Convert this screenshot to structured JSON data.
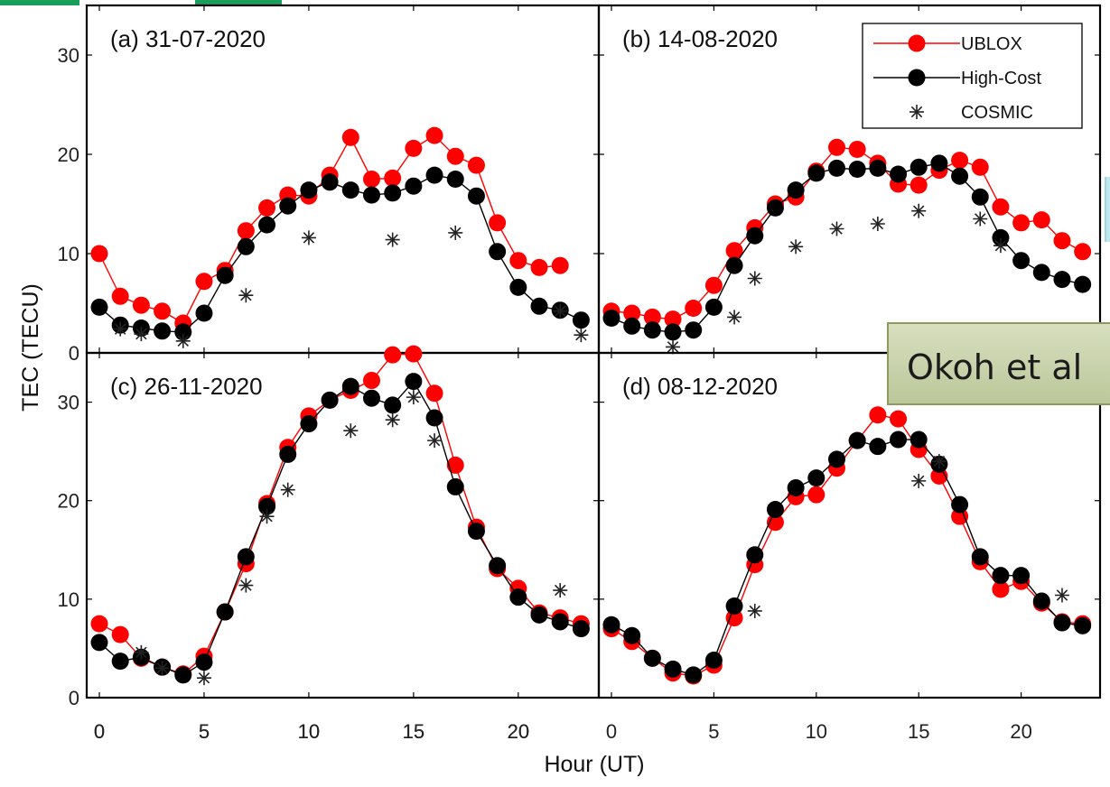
{
  "figure": {
    "xlabel": "Hour (UT)",
    "ylabel": "TEC (TECU)",
    "note_text": "Okoh et al"
  },
  "colors": {
    "ublox": "#ff0000",
    "highcost": "#000000",
    "cosmic": "#222222",
    "note_bg": "#c9d2a6"
  },
  "legend": {
    "entries": [
      "UBLOX",
      "High-Cost",
      "COSMIC"
    ],
    "position": "top-right of panel b"
  },
  "chart_data": [
    {
      "type": "line",
      "title": "(a) 31-07-2020",
      "xlim": [
        0,
        23.5
      ],
      "ylim": [
        0,
        35
      ],
      "xticks": [
        "0",
        "5",
        "10",
        "15",
        "20"
      ],
      "yticks": [
        "0",
        "10",
        "20",
        "30"
      ],
      "grid": false,
      "series": [
        {
          "name": "UBLOX",
          "x": [
            0,
            1,
            2,
            3,
            4,
            5,
            6,
            7,
            8,
            9,
            10,
            11,
            12,
            13,
            14,
            15,
            16,
            17,
            18,
            19,
            20,
            21,
            22
          ],
          "values": [
            10.0,
            5.7,
            4.8,
            4.2,
            3.0,
            7.2,
            8.3,
            12.3,
            14.6,
            15.9,
            15.8,
            17.9,
            21.7,
            17.5,
            17.6,
            20.6,
            21.9,
            19.8,
            18.9,
            13.1,
            9.3,
            8.6,
            8.8
          ]
        },
        {
          "name": "High-Cost",
          "x": [
            0,
            1,
            2,
            3,
            4,
            5,
            6,
            7,
            8,
            9,
            10,
            11,
            12,
            13,
            14,
            15,
            16,
            17,
            18,
            19,
            20,
            21,
            22,
            23
          ],
          "values": [
            4.6,
            2.8,
            2.5,
            2.2,
            2.1,
            4.0,
            7.8,
            10.7,
            12.9,
            14.8,
            16.4,
            17.2,
            16.4,
            15.9,
            16.1,
            16.8,
            17.9,
            17.5,
            15.8,
            10.2,
            6.6,
            4.7,
            4.3,
            3.3
          ]
        },
        {
          "name": "COSMIC",
          "x": [
            1,
            2,
            4,
            7,
            10,
            14,
            17,
            22,
            23
          ],
          "values": [
            2.4,
            1.9,
            1.2,
            5.8,
            11.6,
            11.4,
            12.1,
            4.2,
            1.8
          ]
        }
      ]
    },
    {
      "type": "line",
      "title": "(b) 14-08-2020",
      "xlim": [
        0,
        23.5
      ],
      "ylim": [
        0,
        35
      ],
      "xticks": [],
      "yticks": [],
      "grid": false,
      "series": [
        {
          "name": "UBLOX",
          "x": [
            0,
            1,
            2,
            3,
            4,
            5,
            6,
            7,
            8,
            9,
            10,
            11,
            12,
            13,
            14,
            15,
            16,
            17,
            18,
            19,
            20,
            21,
            22,
            23
          ],
          "values": [
            4.2,
            4.0,
            3.6,
            3.4,
            4.5,
            6.8,
            10.3,
            12.6,
            15.0,
            15.7,
            18.3,
            20.7,
            20.5,
            19.1,
            17.0,
            16.9,
            18.4,
            19.4,
            18.7,
            14.7,
            13.1,
            13.4,
            11.3,
            10.2
          ]
        },
        {
          "name": "High-Cost",
          "x": [
            0,
            1,
            2,
            3,
            4,
            5,
            6,
            7,
            8,
            9,
            10,
            11,
            12,
            13,
            14,
            15,
            16,
            17,
            18,
            19,
            20,
            21,
            22,
            23
          ],
          "values": [
            3.5,
            2.7,
            2.3,
            2.1,
            2.3,
            4.6,
            8.8,
            11.8,
            14.6,
            16.4,
            18.1,
            18.6,
            18.5,
            18.6,
            18.0,
            18.7,
            19.1,
            17.8,
            15.7,
            11.6,
            9.3,
            8.1,
            7.4,
            6.9
          ]
        },
        {
          "name": "COSMIC",
          "x": [
            3,
            6,
            7,
            9,
            11,
            13,
            15,
            18,
            19
          ],
          "values": [
            0.6,
            3.6,
            7.5,
            10.7,
            12.5,
            13.0,
            14.3,
            13.5,
            10.8
          ]
        }
      ]
    },
    {
      "type": "line",
      "title": "(c) 26-11-2020",
      "xlim": [
        0,
        23.5
      ],
      "ylim": [
        0,
        35
      ],
      "xticks": [
        "0",
        "5",
        "10",
        "15",
        "20"
      ],
      "yticks": [
        "0",
        "10",
        "20",
        "30"
      ],
      "grid": false,
      "series": [
        {
          "name": "UBLOX",
          "x": [
            0,
            1,
            2,
            3,
            4,
            5,
            6,
            7,
            8,
            9,
            10,
            11,
            12,
            13,
            14,
            15,
            16,
            17,
            18,
            19,
            20,
            21,
            22,
            23
          ],
          "values": [
            7.5,
            6.4,
            4.0,
            3.1,
            2.4,
            4.2,
            8.7,
            13.6,
            19.7,
            25.4,
            28.6,
            30.2,
            31.2,
            32.2,
            34.8,
            34.9,
            30.9,
            23.6,
            17.3,
            13.1,
            11.1,
            8.6,
            8.1,
            7.5
          ]
        },
        {
          "name": "High-Cost",
          "x": [
            0,
            1,
            2,
            3,
            4,
            5,
            6,
            7,
            8,
            9,
            10,
            11,
            12,
            13,
            14,
            15,
            16,
            17,
            18,
            19,
            20,
            21,
            22,
            23
          ],
          "values": [
            5.6,
            3.7,
            4.1,
            3.1,
            2.3,
            3.6,
            8.7,
            14.3,
            19.4,
            24.7,
            27.8,
            30.2,
            31.6,
            30.4,
            29.7,
            32.1,
            28.4,
            21.4,
            16.9,
            13.4,
            10.2,
            8.4,
            7.7,
            7.0
          ]
        },
        {
          "name": "COSMIC",
          "x": [
            2,
            3,
            5,
            7,
            8,
            9,
            12,
            14,
            15,
            16,
            22
          ],
          "values": [
            4.6,
            3.0,
            2.0,
            11.4,
            18.4,
            21.1,
            27.1,
            28.2,
            30.5,
            26.1,
            10.9
          ]
        }
      ]
    },
    {
      "type": "line",
      "title": "(d) 08-12-2020",
      "xlim": [
        0,
        23.5
      ],
      "ylim": [
        0,
        35
      ],
      "xticks": [
        "0",
        "5",
        "10",
        "15",
        "20"
      ],
      "yticks": [],
      "grid": false,
      "series": [
        {
          "name": "UBLOX",
          "x": [
            0,
            1,
            2,
            3,
            4,
            5,
            6,
            7,
            8,
            9,
            10,
            11,
            12,
            13,
            14,
            15,
            16,
            17,
            18,
            19,
            20,
            21,
            22,
            23
          ],
          "values": [
            7.0,
            5.7,
            4.0,
            2.5,
            2.2,
            3.3,
            8.1,
            13.5,
            17.8,
            20.4,
            20.6,
            23.3,
            26.1,
            28.7,
            28.3,
            25.2,
            22.5,
            18.4,
            13.8,
            11.0,
            11.8,
            9.6,
            7.7,
            7.5
          ]
        },
        {
          "name": "High-Cost",
          "x": [
            0,
            1,
            2,
            3,
            4,
            5,
            6,
            7,
            8,
            9,
            10,
            11,
            12,
            13,
            14,
            15,
            16,
            17,
            18,
            19,
            20,
            21,
            22,
            23
          ],
          "values": [
            7.4,
            6.3,
            4.0,
            2.9,
            2.3,
            3.8,
            9.3,
            14.5,
            19.1,
            21.3,
            22.3,
            24.2,
            26.1,
            25.5,
            26.2,
            26.2,
            23.7,
            19.6,
            14.3,
            12.4,
            12.4,
            9.8,
            7.6,
            7.3
          ]
        },
        {
          "name": "COSMIC",
          "x": [
            7,
            15,
            16,
            22
          ],
          "values": [
            8.8,
            22.0,
            24.0,
            10.4
          ]
        }
      ]
    }
  ]
}
